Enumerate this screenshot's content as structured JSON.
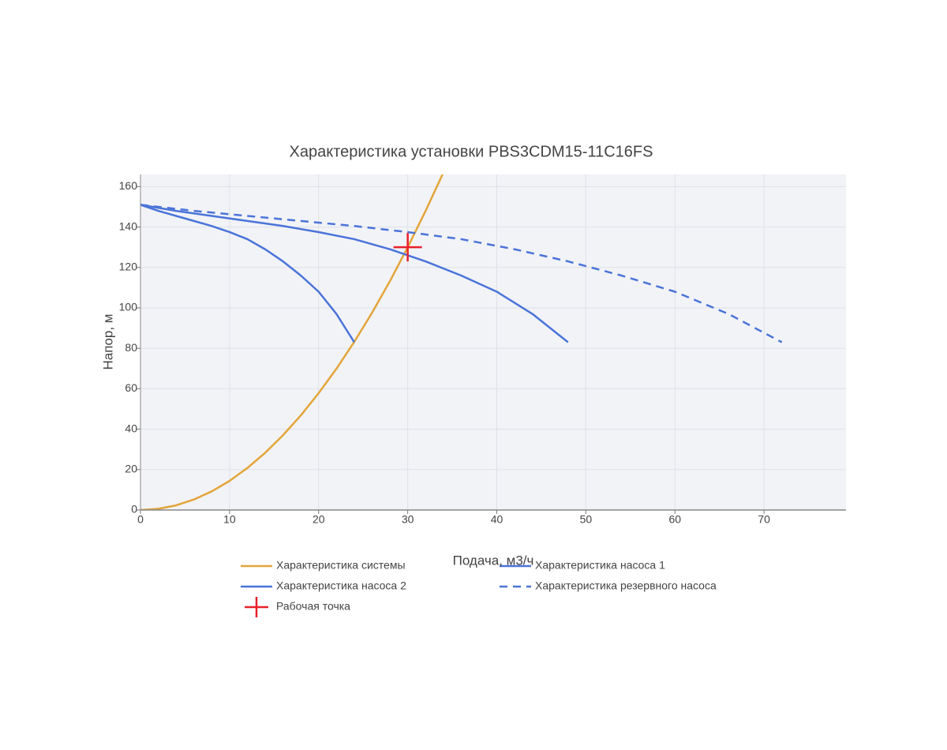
{
  "chart_data": {
    "type": "line",
    "title": "Характеристика установки PBS3CDM15-11C16FS",
    "x_label": "Подача, м3/ч",
    "y_label": "Напор, м",
    "xlim": [
      0,
      79.2
    ],
    "ylim": [
      0,
      166
    ],
    "xticks": [
      0,
      10,
      20,
      30,
      40,
      50,
      60,
      70
    ],
    "yticks": [
      0,
      20,
      40,
      60,
      80,
      100,
      120,
      140,
      160
    ],
    "grid": true,
    "legend": "bottom",
    "series": [
      {
        "name": "Характеристика системы",
        "color": "#e3a53a",
        "dash": "solid",
        "x": [
          0,
          2,
          4,
          6,
          8,
          10,
          12,
          14,
          16,
          18,
          20,
          22,
          24,
          26,
          28,
          30,
          32,
          34
        ],
        "values": [
          0,
          0.6,
          2.3,
          5.2,
          9.2,
          14.4,
          20.8,
          28.3,
          37,
          46.8,
          57.8,
          69.9,
          83.2,
          97.6,
          113.2,
          130,
          147.9,
          166.9
        ]
      },
      {
        "name": "Характеристика насоса 1",
        "color": "#4a74d9",
        "dash": "solid",
        "x": [
          0,
          2,
          4,
          6,
          8,
          10,
          12,
          14,
          16,
          18,
          20,
          22,
          24
        ],
        "values": [
          151,
          148,
          145.5,
          143,
          140.5,
          137.5,
          134,
          129,
          123,
          116,
          108,
          97,
          83
        ]
      },
      {
        "name": "Характеристика насоса 2",
        "color": "#4a74d9",
        "dash": "solid",
        "x": [
          0,
          4,
          8,
          12,
          16,
          20,
          24,
          28,
          32,
          36,
          40,
          44,
          48
        ],
        "values": [
          151,
          148,
          145.5,
          143,
          140.5,
          137.5,
          134,
          129,
          123,
          116,
          108,
          97,
          83
        ]
      },
      {
        "name": "Характеристика резервного насоса",
        "color": "#4a74d9",
        "dash": "dash",
        "x": [
          0,
          6,
          12,
          18,
          24,
          30,
          36,
          42,
          48,
          54,
          60,
          66,
          72
        ],
        "values": [
          151,
          148,
          145.5,
          143,
          140.5,
          137.5,
          134,
          129,
          123,
          116,
          108,
          97,
          83
        ]
      },
      {
        "name": "Рабочая точка",
        "color": "#e8202a",
        "marker": "cross",
        "x": [
          30
        ],
        "values": [
          130
        ]
      }
    ]
  }
}
